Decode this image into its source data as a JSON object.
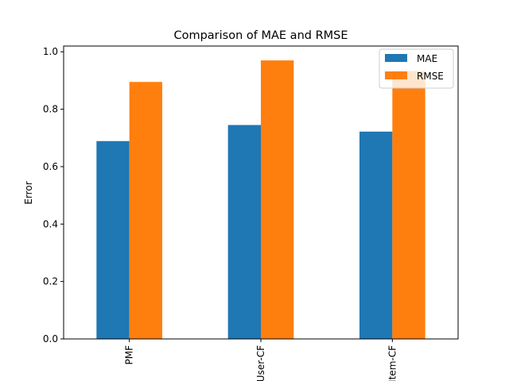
{
  "chart_data": {
    "type": "bar",
    "title": "Comparison of MAE and RMSE",
    "xlabel": "",
    "ylabel": "Error",
    "categories": [
      "PMF",
      "User-CF",
      "Item-CF"
    ],
    "series": [
      {
        "name": "MAE",
        "values": [
          0.689,
          0.745,
          0.722
        ],
        "color": "#1f77b4"
      },
      {
        "name": "RMSE",
        "values": [
          0.895,
          0.97,
          0.933
        ],
        "color": "#ff7f0e"
      }
    ],
    "ylim": [
      0,
      1.02
    ],
    "yticks": [
      0.0,
      0.2,
      0.4,
      0.6,
      0.8,
      1.0
    ],
    "ytick_labels": [
      "0.0",
      "0.2",
      "0.4",
      "0.6",
      "0.8",
      "1.0"
    ],
    "legend_position": "top-right",
    "grid": false
  }
}
